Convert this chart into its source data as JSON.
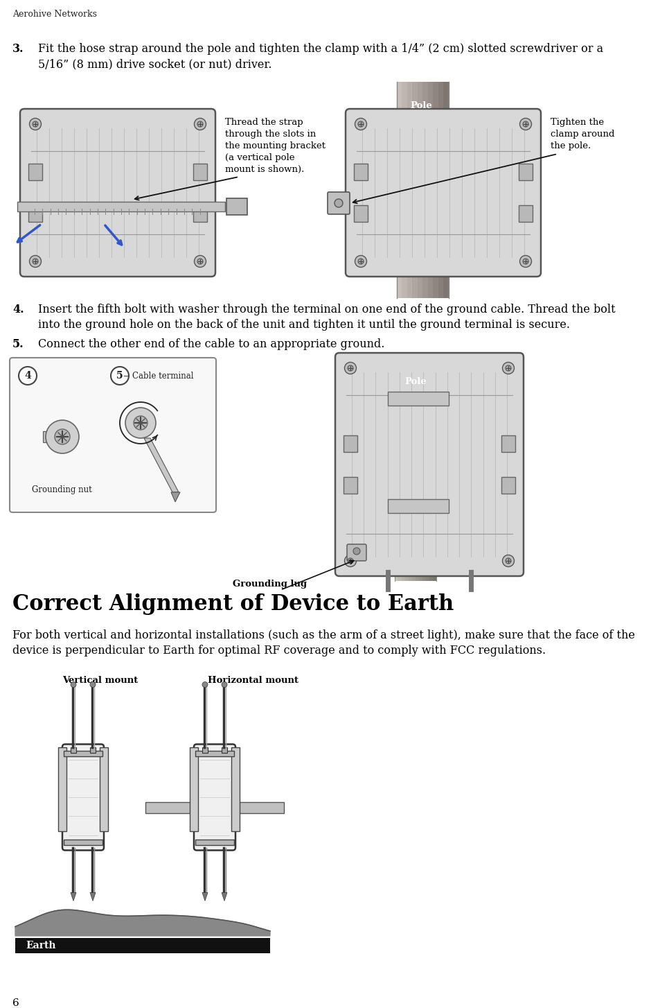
{
  "header_text": "Aerohive Networks",
  "page_number": "6",
  "step3_num": "3.",
  "step3_line1": "Fit the hose strap around the pole and tighten the clamp with a 1/4” (2 cm) slotted screwdriver or a",
  "step3_line2": "5/16” (8 mm) drive socket (or nut) driver.",
  "step4_num": "4.",
  "step4_line1": "Insert the fifth bolt with washer through the terminal on one end of the ground cable. Thread the bolt",
  "step4_line2": "into the ground hole on the back of the unit and tighten it until the ground terminal is secure.",
  "step5_num": "5.",
  "step5_line1": "Connect the other end of the cable to an appropriate ground.",
  "section_title": "Correct Alignment of Device to Earth",
  "section_body_line1": "For both vertical and horizontal installations (such as the arm of a street light), make sure that the face of the",
  "section_body_line2": "device is perpendicular to Earth for optimal RF coverage and to comply with FCC regulations.",
  "label_thread_strap": "Thread the strap\nthrough the slots in\nthe mounting bracket\n(a vertical pole\nmount is shown).",
  "label_tighten_clamp": "Tighten the\nclamp around\nthe pole.",
  "label_pole1": "Pole",
  "label_pole2": "Pole",
  "label_grounding_lug": "Grounding lug",
  "label_grounding_nut": "Grounding nut",
  "label_cable_terminal": "Cable terminal",
  "label_vertical_mount": "Vertical mount",
  "label_horizontal_mount": "Horizontal mount",
  "label_earth": "Earth",
  "bg_color": "#ffffff",
  "text_color": "#000000",
  "gray_light": "#d0d0d0",
  "gray_mid": "#aaaaaa",
  "gray_dark": "#777777",
  "pole_color_top": "#c8c0b8",
  "pole_color_bot": "#888078"
}
